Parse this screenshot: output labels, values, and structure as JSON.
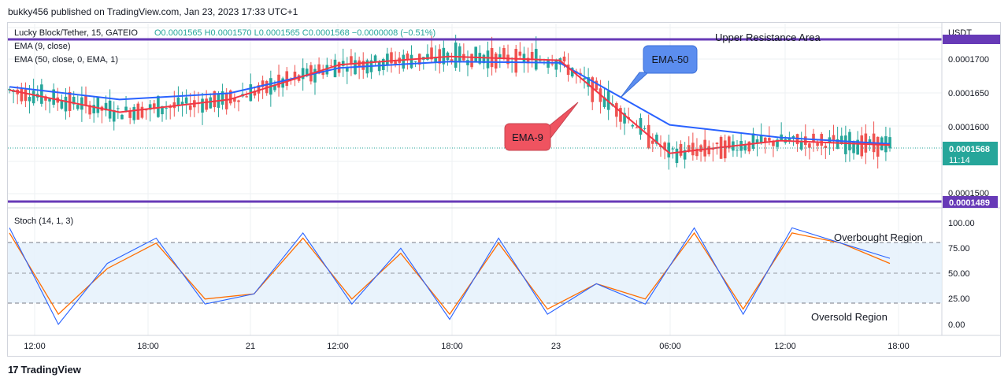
{
  "header": {
    "publisher": "bukky456 published on TradingView.com, Jan 23, 2023 17:33 UTC+1"
  },
  "legend": {
    "symbol": "Lucky Block/Tether, 15, GATEIO",
    "ohlc": "O0.0001565 H0.0001570 L0.0001565 C0.0001568 −0.0000008 (−0.51%)",
    "ema9": "EMA (9, close)",
    "ema50": "EMA (50, close, 0, EMA, 1)"
  },
  "price_axis": {
    "currency": "USDT",
    "ticks": [
      "0.0001700",
      "0.0001650",
      "0.0001600",
      "0.0001500"
    ],
    "last_price": "0.0001568",
    "countdown": "11:14",
    "support_label": "0.0001489"
  },
  "annotations": {
    "upper_resistance": "Upper Resistance Area",
    "ema50_callout": "EMA-50",
    "ema9_callout": "EMA-9",
    "overbought": "Overbought Region",
    "oversold": "Oversold Region"
  },
  "stoch": {
    "title": "Stoch (14, 1, 3)",
    "ticks": [
      "100.00",
      "75.00",
      "50.00",
      "25.00",
      "0.00"
    ]
  },
  "time_axis": [
    "12:00",
    "18:00",
    "21",
    "12:00",
    "18:00",
    "23",
    "06:00",
    "12:00",
    "18:00"
  ],
  "footer": {
    "brand": "TradingView"
  },
  "colors": {
    "up": "#26a69a",
    "down": "#ef5350",
    "ema9": "#f23645",
    "ema50": "#2962ff",
    "level": "#673ab7",
    "k": "#2962ff",
    "d": "#ff6d00",
    "callout50": "#5b8def",
    "callout9": "#ef5360"
  },
  "chart_data": {
    "type": "line",
    "title": "Lucky Block/Tether, 15, GATEIO",
    "x": [
      "12:00",
      "18:00",
      "21",
      "12:00",
      "18:00",
      "23",
      "06:00",
      "12:00",
      "18:00"
    ],
    "ylim": [
      0.000147,
      0.000176
    ],
    "levels": [
      {
        "name": "Upper Resistance Area",
        "value": 0.000174
      },
      {
        "name": "0.0001489",
        "value": 0.0001489
      }
    ],
    "series": [
      {
        "name": "EMA-9",
        "values": [
          0.0001655,
          0.000162,
          0.000164,
          0.0001695,
          0.0001708,
          0.0001702,
          0.0001555,
          0.0001575,
          0.0001568
        ]
      },
      {
        "name": "EMA-50",
        "values": [
          0.000166,
          0.000164,
          0.000165,
          0.000169,
          0.00017,
          0.0001698,
          0.00016,
          0.000158,
          0.000157
        ]
      }
    ],
    "stochastic": {
      "title": "Stoch (14, 1, 3)",
      "ylim": [
        0,
        100
      ],
      "overbought": 80,
      "oversold": 20,
      "k": [
        95,
        0,
        60,
        85,
        20,
        30,
        90,
        20,
        75,
        5,
        85,
        10,
        40,
        20,
        95,
        10,
        95,
        80,
        65
      ],
      "d": [
        90,
        10,
        55,
        80,
        25,
        30,
        85,
        25,
        70,
        10,
        80,
        15,
        40,
        25,
        90,
        15,
        90,
        80,
        60
      ]
    }
  }
}
